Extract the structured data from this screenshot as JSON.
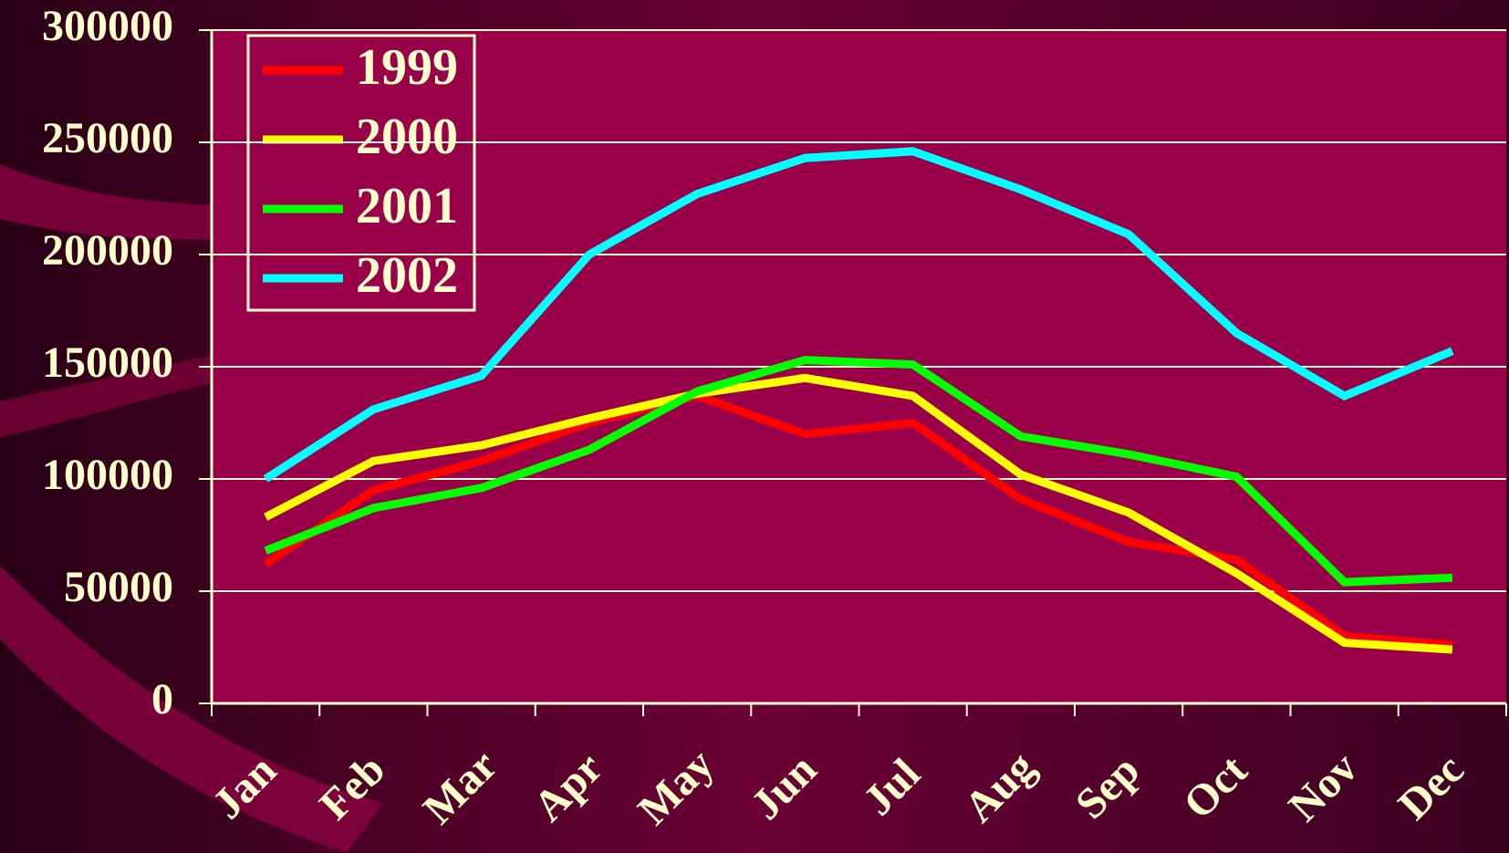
{
  "chart_data": {
    "type": "line",
    "categories": [
      "Jan",
      "Feb",
      "Mar",
      "Apr",
      "May",
      "Jun",
      "Jul",
      "Aug",
      "Sep",
      "Oct",
      "Nov",
      "Dec"
    ],
    "series": [
      {
        "name": "1999",
        "color": "#ff0000",
        "values": [
          62000,
          95000,
          108000,
          125000,
          137000,
          120000,
          125000,
          91000,
          72000,
          64000,
          30000,
          26000
        ]
      },
      {
        "name": "2000",
        "color": "#ffff00",
        "values": [
          83000,
          108000,
          115000,
          127000,
          138000,
          145000,
          137000,
          102000,
          85000,
          58000,
          27000,
          24000
        ]
      },
      {
        "name": "2001",
        "color": "#00ff00",
        "values": [
          68000,
          87000,
          96000,
          113000,
          139000,
          153000,
          151000,
          119000,
          111000,
          101000,
          54000,
          56000
        ]
      },
      {
        "name": "2002",
        "color": "#00ffff",
        "values": [
          100000,
          131000,
          146000,
          200000,
          227000,
          243000,
          246000,
          229000,
          209000,
          165000,
          137000,
          157000
        ]
      }
    ],
    "ylim": [
      0,
      300000
    ],
    "yticks": [
      0,
      50000,
      100000,
      150000,
      200000,
      250000,
      300000
    ],
    "grid": true,
    "legend": "upper left"
  }
}
